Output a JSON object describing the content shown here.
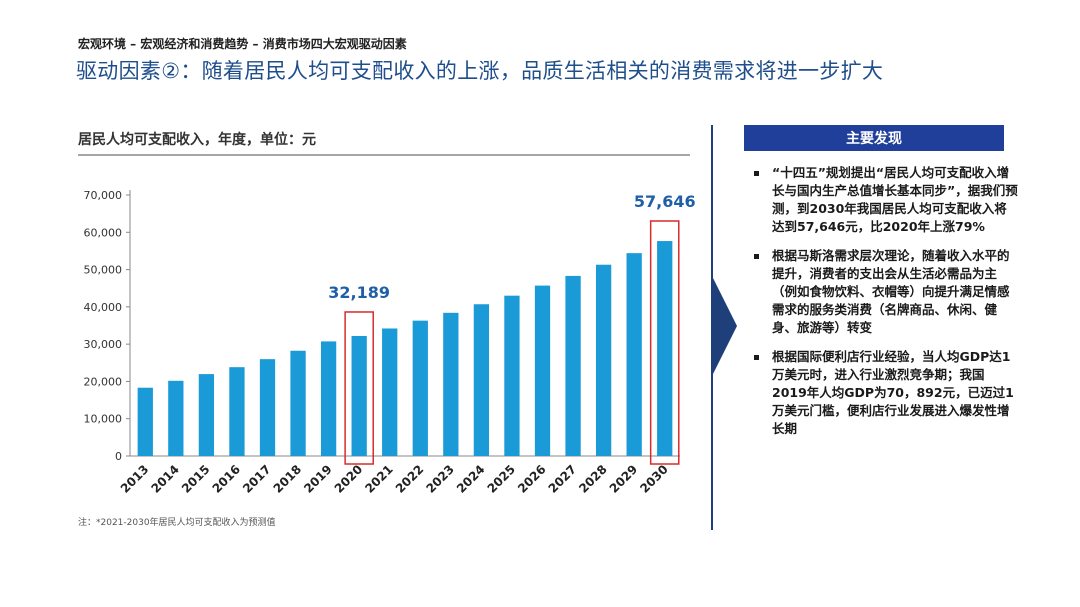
{
  "breadcrumb": "宏观环境 – 宏观经济和消费趋势 – 消费市场四大宏观驱动因素",
  "title": "驱动因素②：随着居民人均可支配收入的上涨，品质生活相关的消费需求将进一步扩大",
  "footnote": "注：*2021-2030年居民人均可支配收入为预测值",
  "colors": {
    "bar": "#1a9ad6",
    "highlight": "#d62c2c",
    "accent": "#1f3f9a",
    "title": "#1f4e8c"
  },
  "chart_data": {
    "type": "bar",
    "title": "居民人均可支配收入，年度，单位：元",
    "categories": [
      "2013",
      "2014",
      "2015",
      "2016",
      "2017",
      "2018",
      "2019",
      "2020",
      "2021",
      "2022",
      "2023",
      "2024",
      "2025",
      "2026",
      "2027",
      "2028",
      "2029",
      "2030"
    ],
    "values": [
      18311,
      20167,
      21966,
      23821,
      25974,
      28228,
      30733,
      32189,
      34200,
      36300,
      38400,
      40700,
      43000,
      45700,
      48300,
      51300,
      54400,
      57646
    ],
    "ylim": [
      0,
      70000
    ],
    "yticks": [
      "0",
      "10,000",
      "20,000",
      "30,000",
      "40,000",
      "50,000",
      "60,000",
      "70,000"
    ],
    "highlighted": [
      {
        "category": "2020",
        "label": "32,189"
      },
      {
        "category": "2030",
        "label": "57,646"
      }
    ],
    "xlabel": "",
    "ylabel": ""
  },
  "panel": {
    "header": "主要发现",
    "items": [
      "“十四五”规划提出“居民人均可支配收入增长与国内生产总值增长基本同步”，据我们预测，到2030年我国居民人均可支配收入将达到57,646元，比2020年上涨79%",
      "根据马斯洛需求层次理论，随着收入水平的提升，消费者的支出会从生活必需品为主（例如食物饮料、衣帽等）向提升满足情感需求的服务类消费（名牌商品、休闲、健身、旅游等）转变",
      "根据国际便利店行业经验，当人均GDP达1万美元时，进入行业激烈竞争期；我国2019年人均GDP为70，892元，已迈过1万美元门槛，便利店行业发展进入爆发性增长期"
    ]
  }
}
